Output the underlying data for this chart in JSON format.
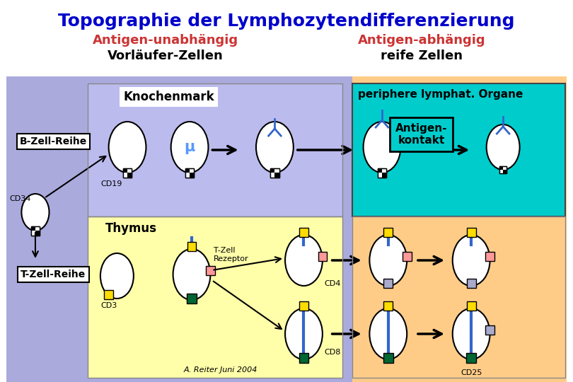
{
  "title": "Topographie der Lymphozytendifferenzierung",
  "title_color": "#0000CC",
  "subtitle_left": "Antigen-unabhängig",
  "subtitle_right": "Antigen-abhängig",
  "subtitle_color": "#CC3333",
  "sub2_left": "Vorläufer-Zellen",
  "sub2_right": "reife Zellen",
  "sub2_color": "#000000",
  "bg_color": "#FFFFFF",
  "left_bg": "#AAAADD",
  "knochenmark_bg": "#BBBBEE",
  "thymus_bg": "#FFFFAA",
  "right_bg": "#FFCC88",
  "cyan_bg": "#00CCCC",
  "label_knochenmark": "Knochenmark",
  "label_periphere": "periphere lymphat. Organe",
  "label_thymus": "Thymus",
  "label_antigen": "Antigen-\nkontakt",
  "label_b_reihe": "B-Zell-Reihe",
  "label_t_reihe": "T-Zell-Reihe",
  "label_cd34": "CD34",
  "label_cd19": "CD19",
  "label_cd3": "CD3",
  "label_cd4": "CD4",
  "label_cd8": "CD8",
  "label_cd25": "CD25",
  "label_mu": "μ",
  "label_t_rezeptor": "T-Zell\nRezeptor",
  "label_author": "A. Reiter Juni 2004",
  "color_yellow": "#FFDD00",
  "color_pink": "#FF9999",
  "color_green": "#006633",
  "color_blue_receptor": "#3366CC",
  "color_lavender": "#AAAACC",
  "color_checkered": "#555555"
}
